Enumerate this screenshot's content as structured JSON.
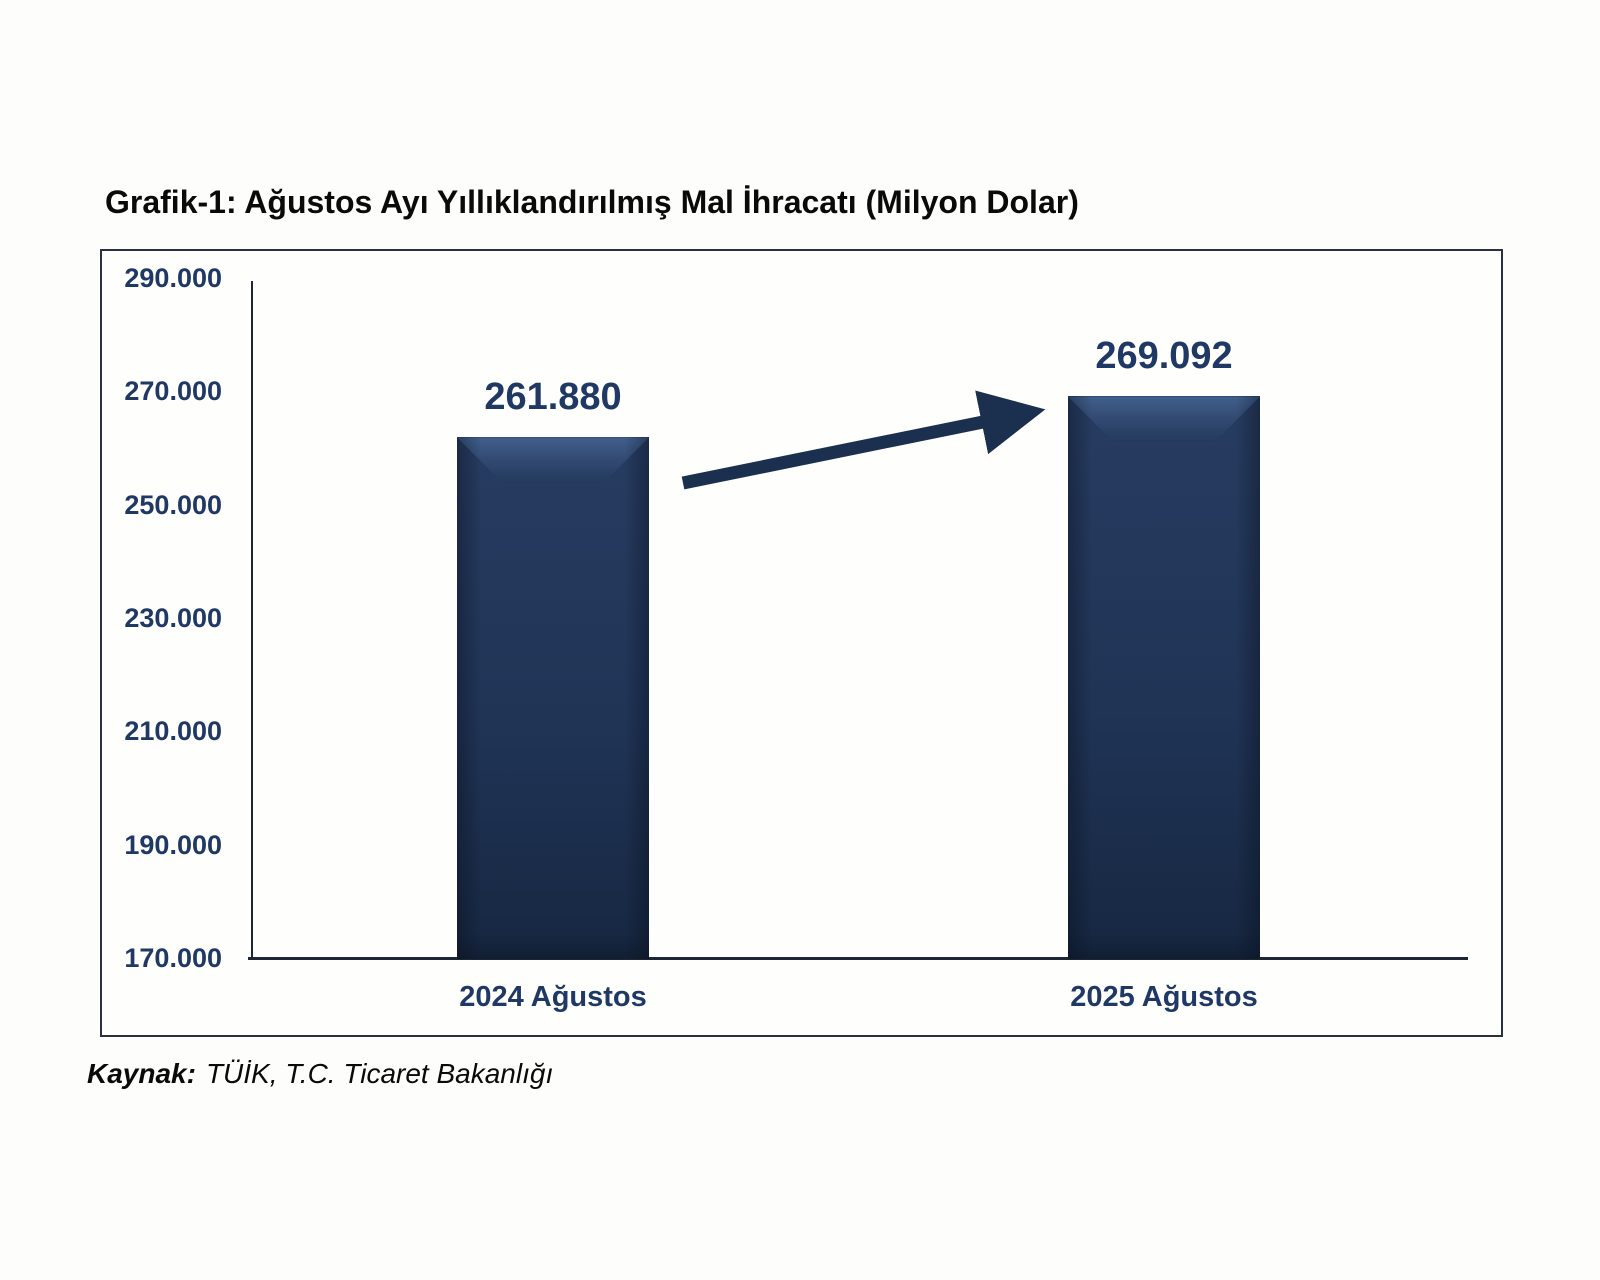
{
  "title": "Grafik-1: Ağustos Ayı Yıllıklandırılmış Mal İhracatı (Milyon Dolar)",
  "source": {
    "label": "Kaynak:",
    "text": "TÜİK, T.C. Ticaret Bakanlığı"
  },
  "colors": {
    "bar_fill": "#203456",
    "bar_bevel_highlight": "#41608c",
    "label_text": "#1F3864",
    "axis_line": "#1d2734",
    "frame_border": "#27313f",
    "arrow": "#1B2F4E",
    "title_text": "#0a0a0a"
  },
  "chart_data": {
    "type": "bar",
    "title": "Grafik-1: Ağustos Ayı Yıllıklandırılmış Mal İhracatı (Milyon Dolar)",
    "categories": [
      "2024 Ağustos",
      "2025 Ağustos"
    ],
    "values": [
      261880,
      269092
    ],
    "value_labels": [
      "261.880",
      "269.092"
    ],
    "xlabel": "",
    "ylabel": "",
    "ylim": [
      170000,
      290000
    ],
    "ytick_step": 20000,
    "ytick_labels": [
      "290.000",
      "270.000",
      "250.000",
      "230.000",
      "210.000",
      "190.000",
      "170.000"
    ],
    "grid": false,
    "legend": false,
    "annotations": [
      "thick navy arrow rising from 2024 bar toward 2025 bar"
    ]
  }
}
